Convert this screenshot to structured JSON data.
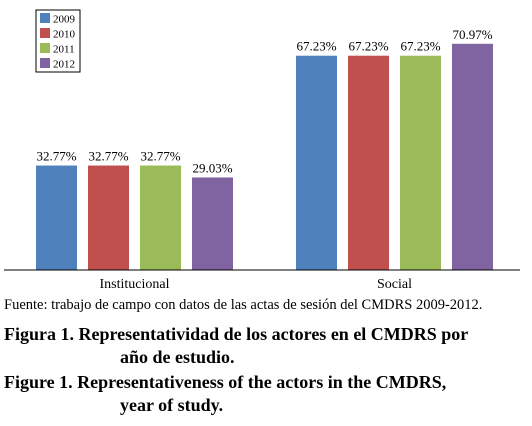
{
  "chart_data": {
    "type": "bar",
    "categories": [
      "Institucional",
      "Social"
    ],
    "series": [
      {
        "name": "2009",
        "values": [
          32.77,
          67.23
        ],
        "labels": [
          "32.77%",
          "67.23%"
        ],
        "color": "#4F81BD"
      },
      {
        "name": "2010",
        "values": [
          32.77,
          67.23
        ],
        "labels": [
          "32.77%",
          "67.23%"
        ],
        "color": "#C0504D"
      },
      {
        "name": "2011",
        "values": [
          32.77,
          67.23
        ],
        "labels": [
          "32.77%",
          "67.23%"
        ],
        "color": "#9BBB59"
      },
      {
        "name": "2012",
        "values": [
          29.03,
          70.97
        ],
        "labels": [
          "29.03%",
          "70.97%"
        ],
        "color": "#8064A2"
      }
    ],
    "ylim": [
      0,
      80
    ],
    "grid": false,
    "legend_position": "top-left"
  },
  "source_note": "Fuente: trabajo de campo con datos de las actas de sesión del CMDRS 2009-2012.",
  "caption_es": {
    "line1": "Figura 1. Representatividad de los actores en el CMDRS por",
    "line2": "año de estudio."
  },
  "caption_en": {
    "line1": "Figure 1. Representativeness of the actors in the CMDRS,",
    "line2": "year of study."
  }
}
